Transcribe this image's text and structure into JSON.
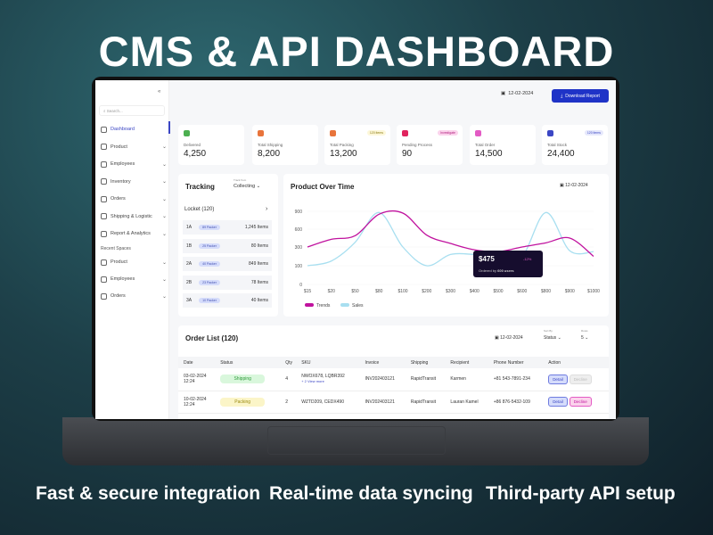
{
  "banner": {
    "title": "CMS & API DASHBOARD",
    "captions": [
      "Fast & secure integration",
      "Real-time data syncing",
      "Third-party API setup"
    ]
  },
  "sidebar": {
    "search_placeholder": "Search...",
    "items": [
      {
        "label": "Dashboard",
        "active": true
      },
      {
        "label": "Product"
      },
      {
        "label": "Employees"
      },
      {
        "label": "Inventory"
      },
      {
        "label": "Orders"
      },
      {
        "label": "Shipping & Logistic"
      },
      {
        "label": "Report & Analytics"
      }
    ],
    "recent_title": "Recent Spaces",
    "recent": [
      {
        "label": "Product"
      },
      {
        "label": "Employees"
      },
      {
        "label": "Orders"
      }
    ]
  },
  "header": {
    "date": "12-02-2024",
    "download": "Download Report"
  },
  "stats": [
    {
      "label": "Delivered",
      "value": "4,250",
      "color": "#4caf50"
    },
    {
      "label": "Total Shipping",
      "value": "8,200",
      "color": "#e8743b"
    },
    {
      "label": "Total Packing",
      "value": "13,200",
      "color": "#e8743b",
      "badge": "120 items"
    },
    {
      "label": "Pending Process",
      "value": "90",
      "color": "#e0245e",
      "badge": "Investigate"
    },
    {
      "label": "Total Order",
      "value": "14,500",
      "color": "#e35bc4"
    },
    {
      "label": "Total Stock",
      "value": "24,400",
      "color": "#3b46c4",
      "badge": "120 items"
    }
  ],
  "tracking": {
    "title": "Tracking",
    "filter_label": "Track from",
    "filter_value": "Collecting",
    "locket": "Locket (120)",
    "rows": [
      {
        "id": "1A",
        "packer": "89 Packer",
        "items": "1,245 Items"
      },
      {
        "id": "1B",
        "packer": "25 Packer",
        "items": "80 Items"
      },
      {
        "id": "2A",
        "packer": "40 Packer",
        "items": "849 Items"
      },
      {
        "id": "2B",
        "packer": "23 Packer",
        "items": "78 Items"
      },
      {
        "id": "3A",
        "packer": "10 Packer",
        "items": "40 Items"
      }
    ]
  },
  "chart_data": {
    "type": "line",
    "title": "Product Over Time",
    "date": "12-02-2024",
    "categories": [
      "$15",
      "$20",
      "$50",
      "$80",
      "$100",
      "$200",
      "$300",
      "$400",
      "$500",
      "$600",
      "$800",
      "$900",
      "$1000"
    ],
    "yticks": [
      0,
      100,
      300,
      600,
      900
    ],
    "series": [
      {
        "name": "Trends",
        "color": "#c0129e",
        "values": [
          300,
          430,
          490,
          850,
          870,
          500,
          360,
          270,
          250,
          300,
          370,
          450,
          200
        ]
      },
      {
        "name": "Sales",
        "color": "#a8dff0",
        "values": [
          100,
          150,
          380,
          880,
          300,
          100,
          220,
          220,
          200,
          200,
          880,
          260,
          250
        ]
      }
    ],
    "tooltip": {
      "value": "$475",
      "change": "-12%",
      "note_prefix": "Ordered by",
      "note_bold": "600 users"
    }
  },
  "orders": {
    "title": "Order List (120)",
    "date": "12-02-2024",
    "sort_label": "Sort By",
    "sort_value": "Status",
    "rows_label": "Rows",
    "rows_value": "5",
    "columns": [
      "Date",
      "Status",
      "Qty",
      "SKU",
      "Invoice",
      "Shipping",
      "Recipient",
      "Phone Number",
      "Action"
    ],
    "rows": [
      {
        "date": "03-02-2024",
        "time": "12:24",
        "status": "Shipping",
        "qty": "4",
        "sku": "NWOX678, LQBR392",
        "more": "+ 2 View more",
        "invoice": "INV202403121",
        "shipping": "RapidTransit",
        "recipient": "Karmen",
        "phone": "+81 543-7891-234",
        "detail": "Detail",
        "decline": "Decline"
      },
      {
        "date": "10-02-2024",
        "time": "12:24",
        "status": "Packing",
        "qty": "2",
        "sku": "WZTD209, CEDX490",
        "more": "",
        "invoice": "INV202403121",
        "shipping": "RapidTransit",
        "recipient": "Lauran Kamel",
        "phone": "+86 876-5432-109",
        "detail": "Detail",
        "decline": "Decline"
      }
    ]
  }
}
